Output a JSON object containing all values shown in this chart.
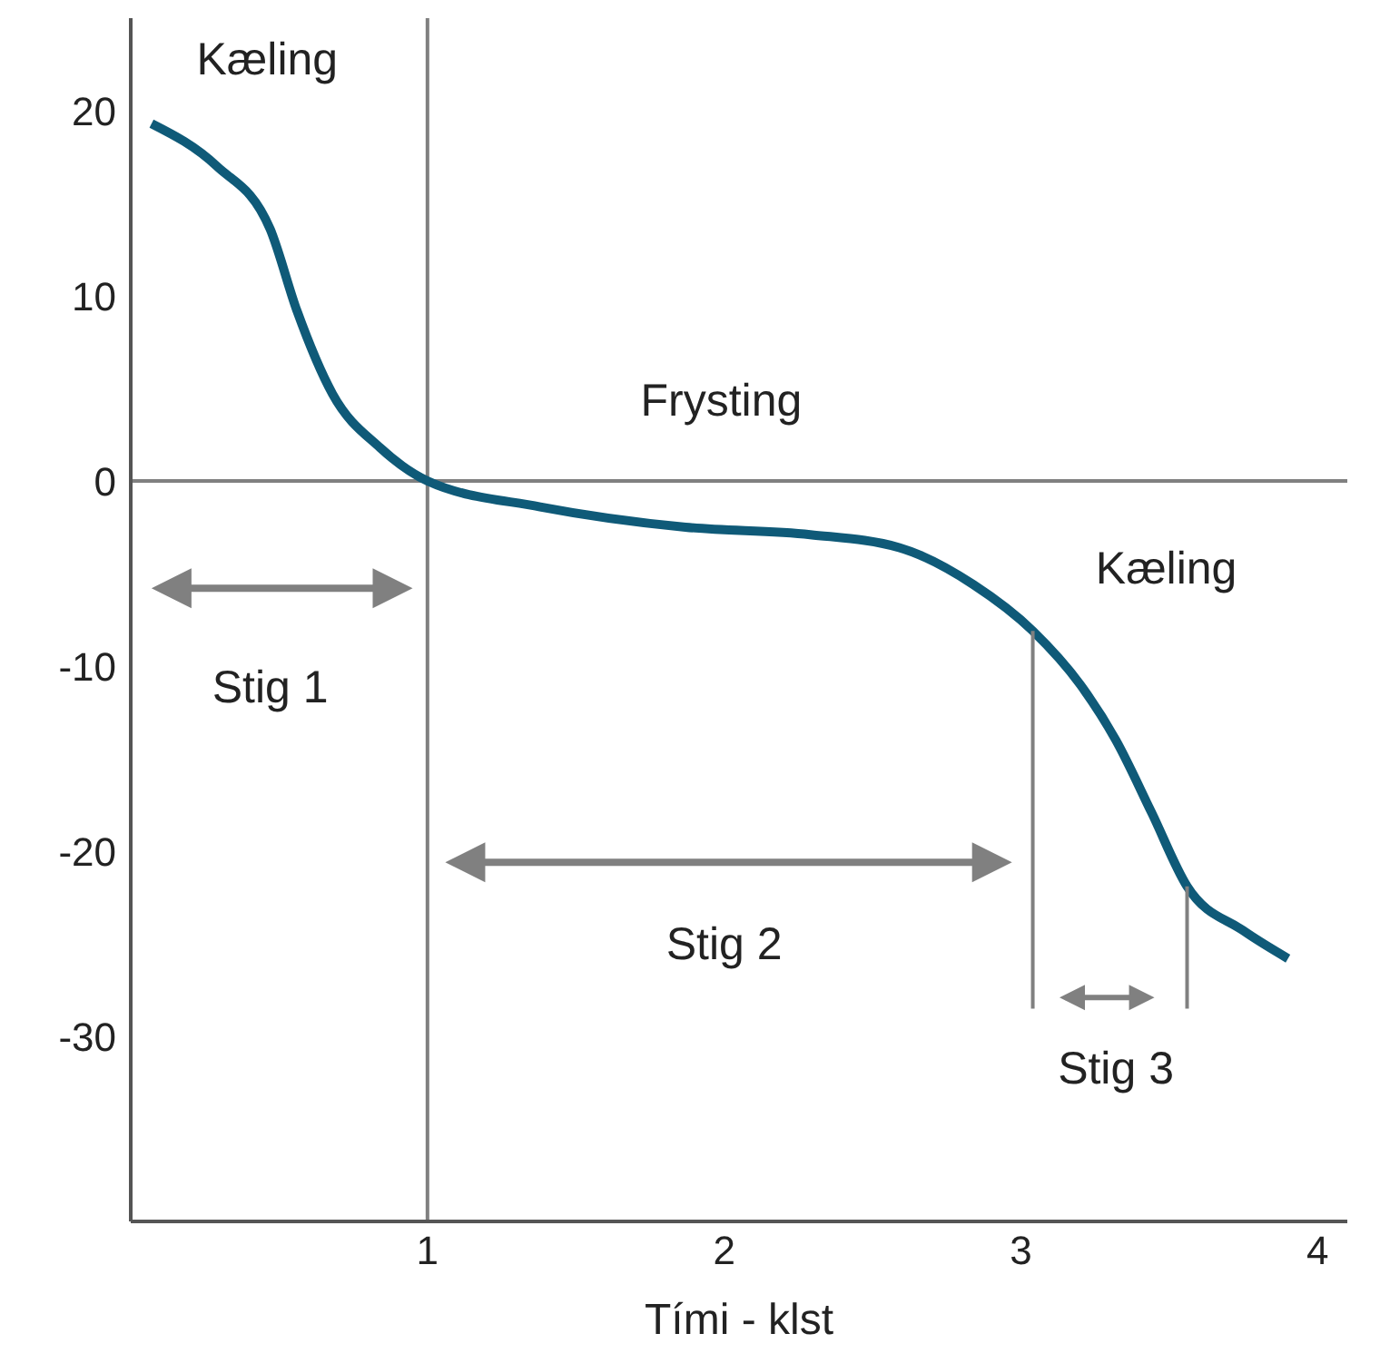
{
  "chart_data": {
    "type": "line",
    "xlabel": "Tími - klst",
    "xlim": [
      0,
      4.1
    ],
    "ylim": [
      -40,
      25
    ],
    "xticks": [
      1,
      2,
      3,
      4
    ],
    "yticks": [
      20,
      10,
      0,
      -10,
      -20,
      -30
    ],
    "marker": "none",
    "series": [
      {
        "color": "#0f5a78",
        "x": [
          0.07,
          0.29,
          0.47,
          0.56,
          0.68,
          0.84,
          1.0,
          1.38,
          1.87,
          2.29,
          2.59,
          2.84,
          3.04,
          3.2,
          3.32,
          3.44,
          3.56,
          3.75,
          3.9
        ],
        "values": [
          19.3,
          17.0,
          13.6,
          9.2,
          4.7,
          1.8,
          0,
          -1.4,
          -2.5,
          -2.9,
          -3.6,
          -5.6,
          -8.1,
          -11.0,
          -14.0,
          -17.9,
          -21.9,
          -24.3,
          -25.8
        ]
      },
      {
        "color": "#808080",
        "x": [
          3.04,
          3.04
        ],
        "values": [
          -8.1,
          -28.5
        ]
      },
      {
        "color": "#808080",
        "x": [
          3.56,
          3.56
        ],
        "values": [
          -21.9,
          -28.5
        ]
      }
    ],
    "ref_lines": [
      {
        "axis": "y",
        "value": 0,
        "color": "#808080"
      },
      {
        "axis": "x",
        "value": 1,
        "color": "#808080"
      }
    ],
    "annotations": [
      "Kæling",
      "Frysting",
      "Kæling",
      "Stig 1",
      "Stig 2",
      "Stig 3"
    ]
  }
}
